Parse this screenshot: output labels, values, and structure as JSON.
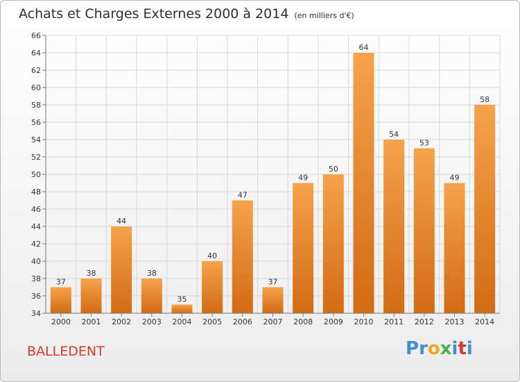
{
  "title": "Achats et Charges Externes 2000 à 2014",
  "unit": "(en milliers d'€)",
  "commune": "BALLEDENT",
  "logo": {
    "letters": [
      "P",
      "r",
      "o",
      "x",
      "i",
      "t",
      "i"
    ],
    "colors": [
      "#3f8fd2",
      "#3f8fd2",
      "#f0a326",
      "#4caf50",
      "#3f8fd2",
      "#d5392b",
      "#3f8fd2"
    ]
  },
  "colors": {
    "bar_top": "#f6a24c",
    "bar_bottom": "#d26b14",
    "grid": "#d8d8d8",
    "commune": "#d5392b"
  },
  "chart_data": {
    "type": "bar",
    "title": "Achats et Charges Externes 2000 à 2014",
    "categories": [
      "2000",
      "2001",
      "2002",
      "2003",
      "2004",
      "2005",
      "2006",
      "2007",
      "2008",
      "2009",
      "2010",
      "2011",
      "2012",
      "2013",
      "2014"
    ],
    "values": [
      37,
      38,
      44,
      38,
      35,
      40,
      47,
      37,
      49,
      50,
      64,
      54,
      53,
      49,
      58
    ],
    "ylim": [
      34,
      66
    ],
    "yticks": [
      34,
      36,
      38,
      40,
      42,
      44,
      46,
      48,
      50,
      52,
      54,
      56,
      58,
      60,
      62,
      64,
      66
    ],
    "grid": true
  }
}
